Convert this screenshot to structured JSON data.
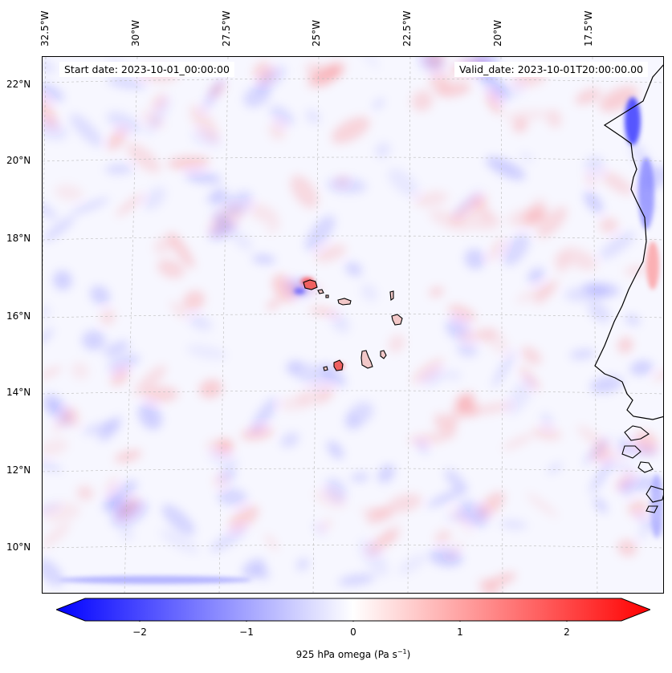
{
  "map": {
    "lon_labels": [
      "32.5°W",
      "30°W",
      "27.5°W",
      "25°W",
      "22.5°W",
      "20°W",
      "17.5°W"
    ],
    "lat_labels": [
      "22°N",
      "20°N",
      "18°N",
      "16°N",
      "14°N",
      "12°N",
      "10°N"
    ],
    "start_date": "Start date: 2023-10-01_00:00:00",
    "valid_date": "Valid_date: 2023-10-01T20:00:00.00"
  },
  "colorbar": {
    "label_main": "925 hPa omega (Pa s",
    "label_exp": "−1",
    "label_close": ")",
    "ticks": [
      "−2",
      "−1",
      "0",
      "1",
      "2"
    ],
    "range": [
      -2.6,
      2.6
    ],
    "cmap": "bwr",
    "colors": {
      "negative": "#0000ff",
      "zero": "#ffffff",
      "positive": "#ff0000"
    }
  }
}
